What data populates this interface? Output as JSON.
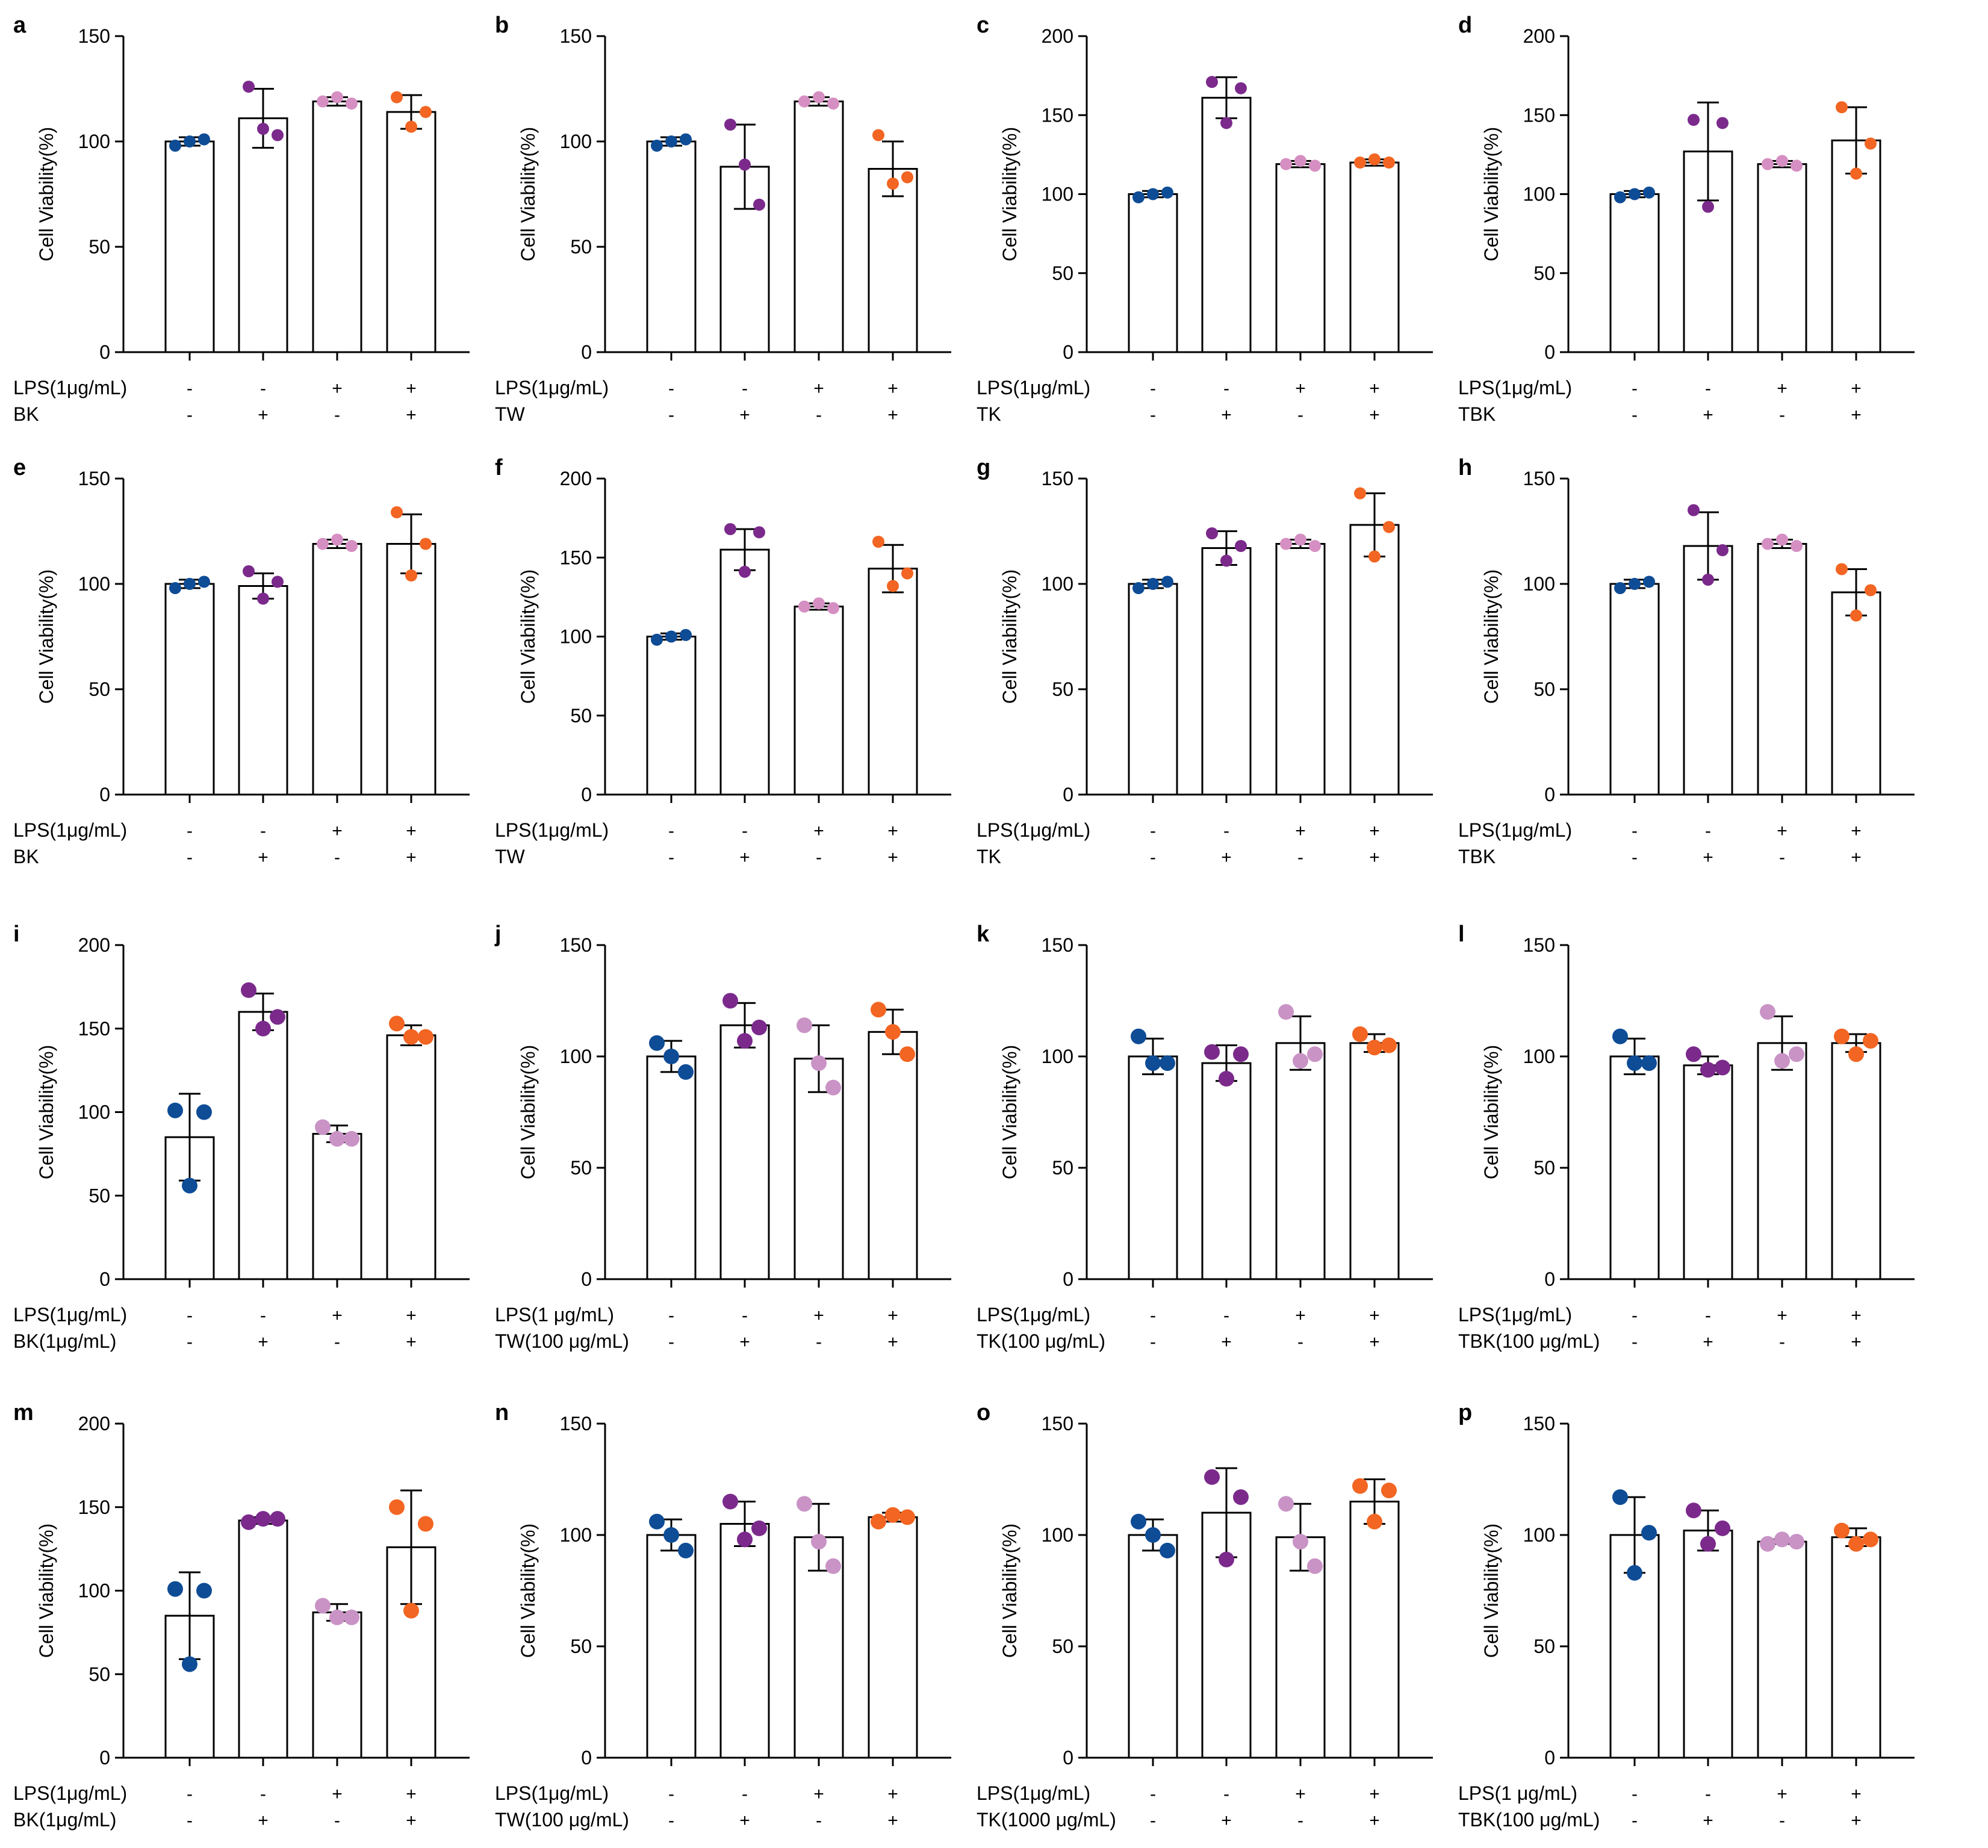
{
  "colors": {
    "group1": "#0e4c96",
    "group2": "#7b2a8c",
    "group3": "#d68fc2",
    "group4": "#f26522",
    "group3_light": "#c993c6",
    "bar_fill": "#ffffff",
    "axis": "#000000"
  },
  "signs": {
    "row1": [
      "-",
      "-",
      "+",
      "+"
    ],
    "row2": [
      "-",
      "+",
      "-",
      "+"
    ]
  },
  "chart_data": [
    {
      "id": "a",
      "panel_label": "a",
      "type": "bar",
      "ylabel": "Cell Viability(%)",
      "ymax": 150,
      "yticks": [
        0,
        50,
        100,
        150
      ],
      "row_labels": [
        "LPS(1μg/mL)",
        "BK"
      ],
      "values": [
        100,
        111,
        119,
        114
      ],
      "errors": [
        2,
        14,
        2,
        8
      ],
      "dot_palette": "A",
      "points": [
        [
          98,
          100,
          101
        ],
        [
          126,
          106,
          103
        ],
        [
          119,
          121,
          118
        ],
        [
          121,
          107,
          114
        ]
      ]
    },
    {
      "id": "b",
      "panel_label": "b",
      "type": "bar",
      "ylabel": "Cell Viability(%)",
      "ymax": 150,
      "yticks": [
        0,
        50,
        100,
        150
      ],
      "row_labels": [
        "LPS(1μg/mL)",
        "TW"
      ],
      "values": [
        100,
        88,
        119,
        87
      ],
      "errors": [
        2,
        20,
        2,
        13
      ],
      "dot_palette": "A",
      "points": [
        [
          98,
          100,
          101
        ],
        [
          108,
          89,
          70
        ],
        [
          119,
          121,
          118
        ],
        [
          103,
          80,
          83
        ]
      ]
    },
    {
      "id": "c",
      "panel_label": "c",
      "type": "bar",
      "ylabel": "Cell Viability(%)",
      "ymax": 200,
      "yticks": [
        0,
        50,
        100,
        150,
        200
      ],
      "row_labels": [
        "LPS(1μg/mL)",
        "TK"
      ],
      "values": [
        100,
        161,
        119,
        120
      ],
      "errors": [
        2,
        13,
        2,
        2
      ],
      "dot_palette": "A",
      "points": [
        [
          98,
          100,
          101
        ],
        [
          171,
          145,
          167
        ],
        [
          119,
          121,
          118
        ],
        [
          120,
          122,
          120
        ]
      ]
    },
    {
      "id": "d",
      "panel_label": "d",
      "type": "bar",
      "ylabel": "Cell Viability(%)",
      "ymax": 200,
      "yticks": [
        0,
        50,
        100,
        150,
        200
      ],
      "row_labels": [
        "LPS(1μg/mL)",
        "TBK"
      ],
      "values": [
        100,
        127,
        119,
        134
      ],
      "errors": [
        2,
        31,
        2,
        21
      ],
      "dot_palette": "A",
      "points": [
        [
          98,
          100,
          101
        ],
        [
          147,
          92,
          145
        ],
        [
          119,
          121,
          118
        ],
        [
          155,
          113,
          132
        ]
      ]
    },
    {
      "id": "e",
      "panel_label": "e",
      "type": "bar",
      "ylabel": "Cell Viability(%)",
      "ymax": 150,
      "yticks": [
        0,
        50,
        100,
        150
      ],
      "row_labels": [
        "LPS(1μg/mL)",
        "BK"
      ],
      "values": [
        100,
        99,
        119,
        119
      ],
      "errors": [
        2,
        6,
        2,
        14
      ],
      "dot_palette": "A",
      "points": [
        [
          98,
          100,
          101
        ],
        [
          106,
          93,
          101
        ],
        [
          119,
          121,
          118
        ],
        [
          134,
          104,
          119
        ]
      ]
    },
    {
      "id": "f",
      "panel_label": "f",
      "type": "bar",
      "ylabel": "Cell Viability(%)",
      "ymax": 200,
      "yticks": [
        0,
        50,
        100,
        150,
        200
      ],
      "row_labels": [
        "LPS(1μg/mL)",
        "TW"
      ],
      "values": [
        100,
        155,
        119,
        143
      ],
      "errors": [
        2,
        13,
        2,
        15
      ],
      "dot_palette": "A",
      "points": [
        [
          98,
          100,
          101
        ],
        [
          168,
          141,
          166
        ],
        [
          119,
          121,
          118
        ],
        [
          160,
          132,
          140
        ]
      ]
    },
    {
      "id": "g",
      "panel_label": "g",
      "type": "bar",
      "ylabel": "Cell Viability(%)",
      "ymax": 150,
      "yticks": [
        0,
        50,
        100,
        150
      ],
      "row_labels": [
        "LPS(1μg/mL)",
        "TK"
      ],
      "values": [
        100,
        117,
        119,
        128
      ],
      "errors": [
        2,
        8,
        2,
        15
      ],
      "dot_palette": "A",
      "points": [
        [
          98,
          100,
          101
        ],
        [
          124,
          111,
          118
        ],
        [
          119,
          121,
          118
        ],
        [
          143,
          113,
          127
        ]
      ]
    },
    {
      "id": "h",
      "panel_label": "h",
      "type": "bar",
      "ylabel": "Cell Viability(%)",
      "ymax": 150,
      "yticks": [
        0,
        50,
        100,
        150
      ],
      "row_labels": [
        "LPS(1μg/mL)",
        "TBK"
      ],
      "values": [
        100,
        118,
        119,
        96
      ],
      "errors": [
        2,
        16,
        2,
        11
      ],
      "dot_palette": "A",
      "points": [
        [
          98,
          100,
          101
        ],
        [
          135,
          102,
          116
        ],
        [
          119,
          121,
          118
        ],
        [
          107,
          85,
          97
        ]
      ]
    },
    {
      "id": "i",
      "panel_label": "i",
      "type": "bar",
      "ylabel": "Cell Viability(%)",
      "ymax": 200,
      "yticks": [
        0,
        50,
        100,
        150,
        200
      ],
      "row_labels": [
        "LPS(1μg/mL)",
        "BK(1μg/mL)"
      ],
      "values": [
        85,
        160,
        87,
        146
      ],
      "errors": [
        26,
        11,
        5,
        6
      ],
      "dot_palette": "B",
      "points": [
        [
          101,
          56,
          100
        ],
        [
          173,
          150,
          157
        ],
        [
          91,
          84,
          84
        ],
        [
          153,
          145,
          145
        ]
      ]
    },
    {
      "id": "j",
      "panel_label": "j",
      "type": "bar",
      "ylabel": "Cell Viability(%)",
      "ymax": 150,
      "yticks": [
        0,
        50,
        100,
        150
      ],
      "row_labels": [
        "LPS(1 μg/mL)",
        "TW(100 μg/mL)"
      ],
      "values": [
        100,
        114,
        99,
        111
      ],
      "errors": [
        7,
        10,
        15,
        10
      ],
      "dot_palette": "B",
      "points": [
        [
          106,
          100,
          93
        ],
        [
          125,
          107,
          113
        ],
        [
          114,
          97,
          86
        ],
        [
          121,
          111,
          101
        ]
      ]
    },
    {
      "id": "k",
      "panel_label": "k",
      "type": "bar",
      "ylabel": "Cell Viability(%)",
      "ymax": 150,
      "yticks": [
        0,
        50,
        100,
        150
      ],
      "row_labels": [
        "LPS(1μg/mL)",
        "TK(100 μg/mL)"
      ],
      "values": [
        100,
        97,
        106,
        106
      ],
      "errors": [
        8,
        8,
        12,
        4
      ],
      "dot_palette": "B",
      "points": [
        [
          109,
          97,
          97
        ],
        [
          102,
          90,
          101
        ],
        [
          120,
          98,
          101
        ],
        [
          110,
          104,
          105
        ]
      ]
    },
    {
      "id": "l",
      "panel_label": "l",
      "type": "bar",
      "ylabel": "Cell Viability(%)",
      "ymax": 150,
      "yticks": [
        0,
        50,
        100,
        150
      ],
      "row_labels": [
        "LPS(1μg/mL)",
        "TBK(100 μg/mL)"
      ],
      "values": [
        100,
        96,
        106,
        106
      ],
      "errors": [
        8,
        4,
        12,
        4
      ],
      "dot_palette": "B",
      "points": [
        [
          109,
          97,
          97
        ],
        [
          101,
          94,
          95
        ],
        [
          120,
          98,
          101
        ],
        [
          109,
          101,
          107
        ]
      ]
    },
    {
      "id": "m",
      "panel_label": "m",
      "type": "bar",
      "ylabel": "Cell Viability(%)",
      "ymax": 200,
      "yticks": [
        0,
        50,
        100,
        150,
        200
      ],
      "row_labels": [
        "LPS(1μg/mL)",
        "BK(1μg/mL)"
      ],
      "values": [
        85,
        142,
        87,
        126
      ],
      "errors": [
        26,
        2,
        5,
        34
      ],
      "dot_palette": "B",
      "points": [
        [
          101,
          56,
          100
        ],
        [
          141,
          143,
          143
        ],
        [
          91,
          84,
          84
        ],
        [
          150,
          88,
          140
        ]
      ]
    },
    {
      "id": "n",
      "panel_label": "n",
      "type": "bar",
      "ylabel": "Cell Viability(%)",
      "ymax": 150,
      "yticks": [
        0,
        50,
        100,
        150
      ],
      "row_labels": [
        "LPS(1μg/mL)",
        "TW(100 μg/mL)"
      ],
      "values": [
        100,
        105,
        99,
        108
      ],
      "errors": [
        7,
        10,
        15,
        2
      ],
      "dot_palette": "B",
      "points": [
        [
          106,
          100,
          93
        ],
        [
          115,
          98,
          103
        ],
        [
          114,
          97,
          86
        ],
        [
          106,
          109,
          108
        ]
      ]
    },
    {
      "id": "o",
      "panel_label": "o",
      "type": "bar",
      "ylabel": "Cell Viability(%)",
      "ymax": 150,
      "yticks": [
        0,
        50,
        100,
        150
      ],
      "row_labels": [
        "LPS(1μg/mL)",
        "TK(1000 μg/mL)"
      ],
      "values": [
        100,
        110,
        99,
        115
      ],
      "errors": [
        7,
        20,
        15,
        10
      ],
      "dot_palette": "B",
      "points": [
        [
          106,
          100,
          93
        ],
        [
          126,
          89,
          117
        ],
        [
          114,
          97,
          86
        ],
        [
          122,
          106,
          120
        ]
      ]
    },
    {
      "id": "p",
      "panel_label": "p",
      "type": "bar",
      "ylabel": "Cell Viability(%)",
      "ymax": 150,
      "yticks": [
        0,
        50,
        100,
        150
      ],
      "row_labels": [
        "LPS(1 μg/mL)",
        "TBK(100 μg/mL)"
      ],
      "values": [
        100,
        102,
        97,
        99
      ],
      "errors": [
        17,
        9,
        1,
        4
      ],
      "dot_palette": "B",
      "points": [
        [
          117,
          83,
          101
        ],
        [
          111,
          96,
          103
        ],
        [
          96,
          98,
          97
        ],
        [
          102,
          96,
          98
        ]
      ]
    }
  ]
}
